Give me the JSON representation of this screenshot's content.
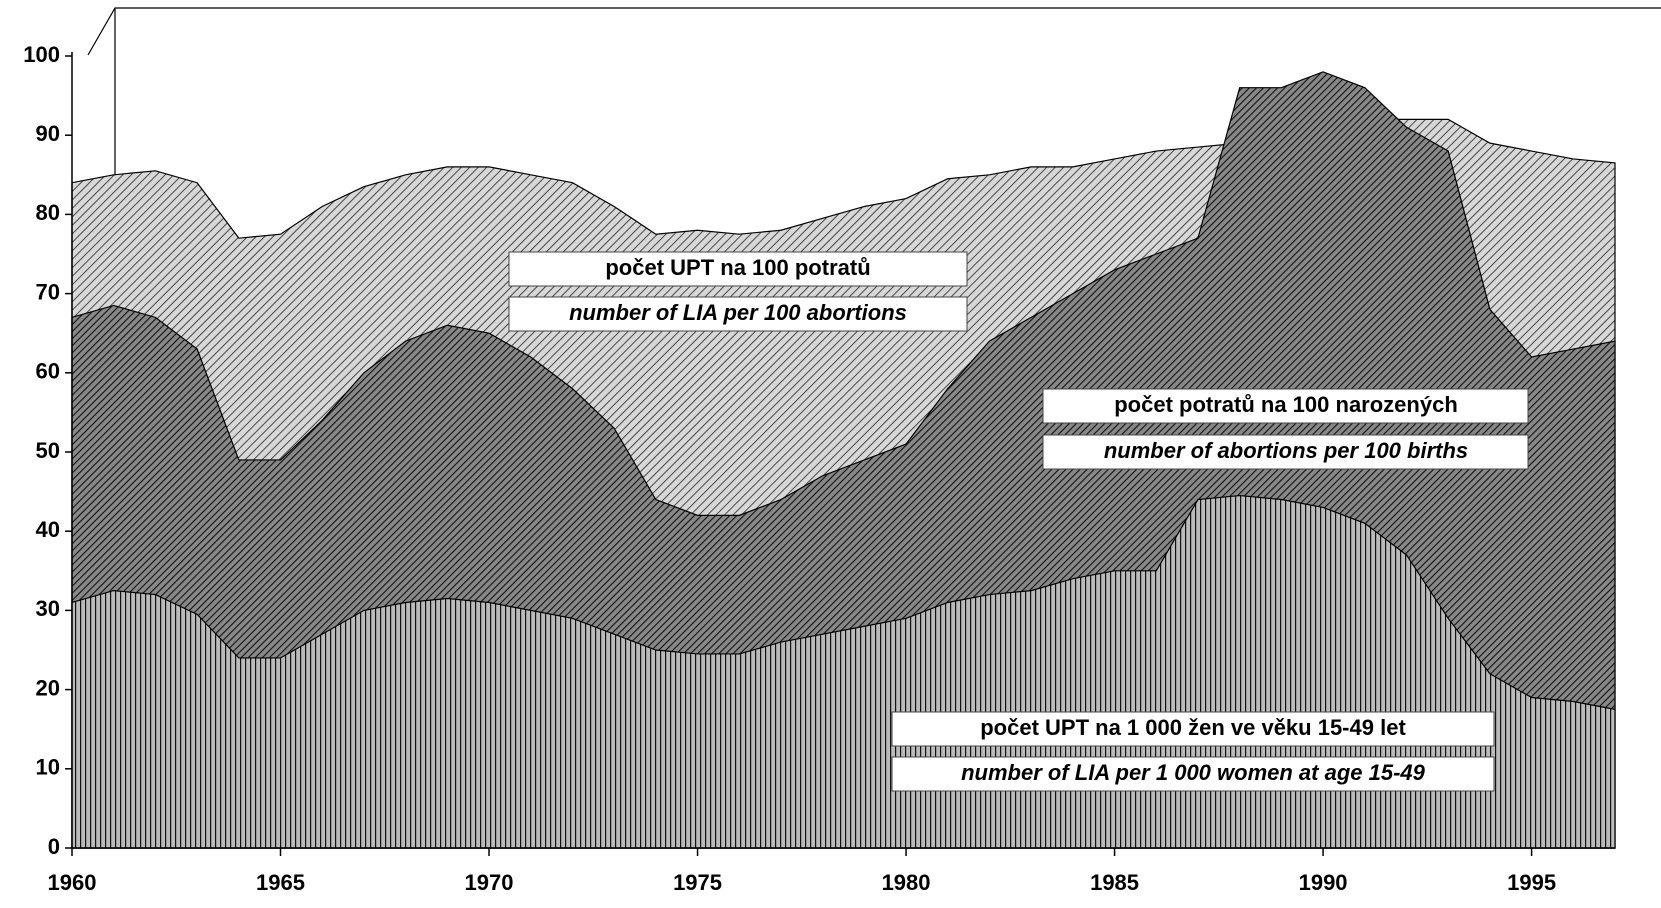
{
  "chart_data": {
    "type": "area",
    "x": [
      1960,
      1961,
      1962,
      1963,
      1964,
      1965,
      1966,
      1967,
      1968,
      1969,
      1970,
      1971,
      1972,
      1973,
      1974,
      1975,
      1976,
      1977,
      1978,
      1979,
      1980,
      1981,
      1982,
      1983,
      1984,
      1985,
      1986,
      1987,
      1988,
      1989,
      1990,
      1991,
      1992,
      1993,
      1994,
      1995,
      1996,
      1997
    ],
    "xlim": [
      1960,
      1997
    ],
    "xticks": [
      1960,
      1965,
      1970,
      1975,
      1980,
      1985,
      1990,
      1995
    ],
    "ylim": [
      0,
      100
    ],
    "yticks": [
      0,
      10,
      20,
      30,
      40,
      50,
      60,
      70,
      80,
      90,
      100
    ],
    "series": [
      {
        "name": "počet UPT na 100 potratů",
        "name_en": "number of LIA per 100 abortions",
        "color": "#c8c8c8",
        "values": [
          84,
          85,
          85.5,
          84,
          77,
          77.5,
          81,
          83.5,
          85,
          86,
          86,
          85,
          84,
          81,
          77.5,
          78,
          77.5,
          78,
          79.5,
          81,
          82,
          84.5,
          85,
          86,
          86,
          87,
          88,
          88.5,
          89,
          90,
          91,
          92,
          92,
          92,
          89,
          88,
          87,
          86.5
        ]
      },
      {
        "name": "počet potratů na 100 narozených",
        "name_en": "number of abortions per 100 births",
        "color": "#8a8a8a",
        "values": [
          67,
          68.5,
          67,
          63,
          49,
          49,
          54,
          60,
          64,
          66,
          65,
          62,
          58,
          53,
          44,
          42,
          42,
          44,
          47,
          49,
          51,
          58,
          64,
          67,
          70,
          73,
          75,
          77,
          96,
          96,
          98,
          96,
          91,
          88,
          68,
          62,
          63,
          64
        ]
      },
      {
        "name": "počet UPT na 1 000 žen ve věku 15-49 let",
        "name_en": "number of LIA per 1 000 women at age 15-49",
        "color": "#a0a0a0",
        "values": [
          31,
          32.5,
          32,
          29.5,
          24,
          24,
          27,
          30,
          31,
          31.5,
          31,
          30,
          29,
          27,
          25,
          24.5,
          24.5,
          26,
          27,
          28,
          29,
          31,
          32,
          32.5,
          34,
          35,
          35,
          44,
          44.5,
          44,
          43,
          41,
          37,
          29,
          22,
          19,
          18.5,
          17.5
        ]
      }
    ]
  }
}
